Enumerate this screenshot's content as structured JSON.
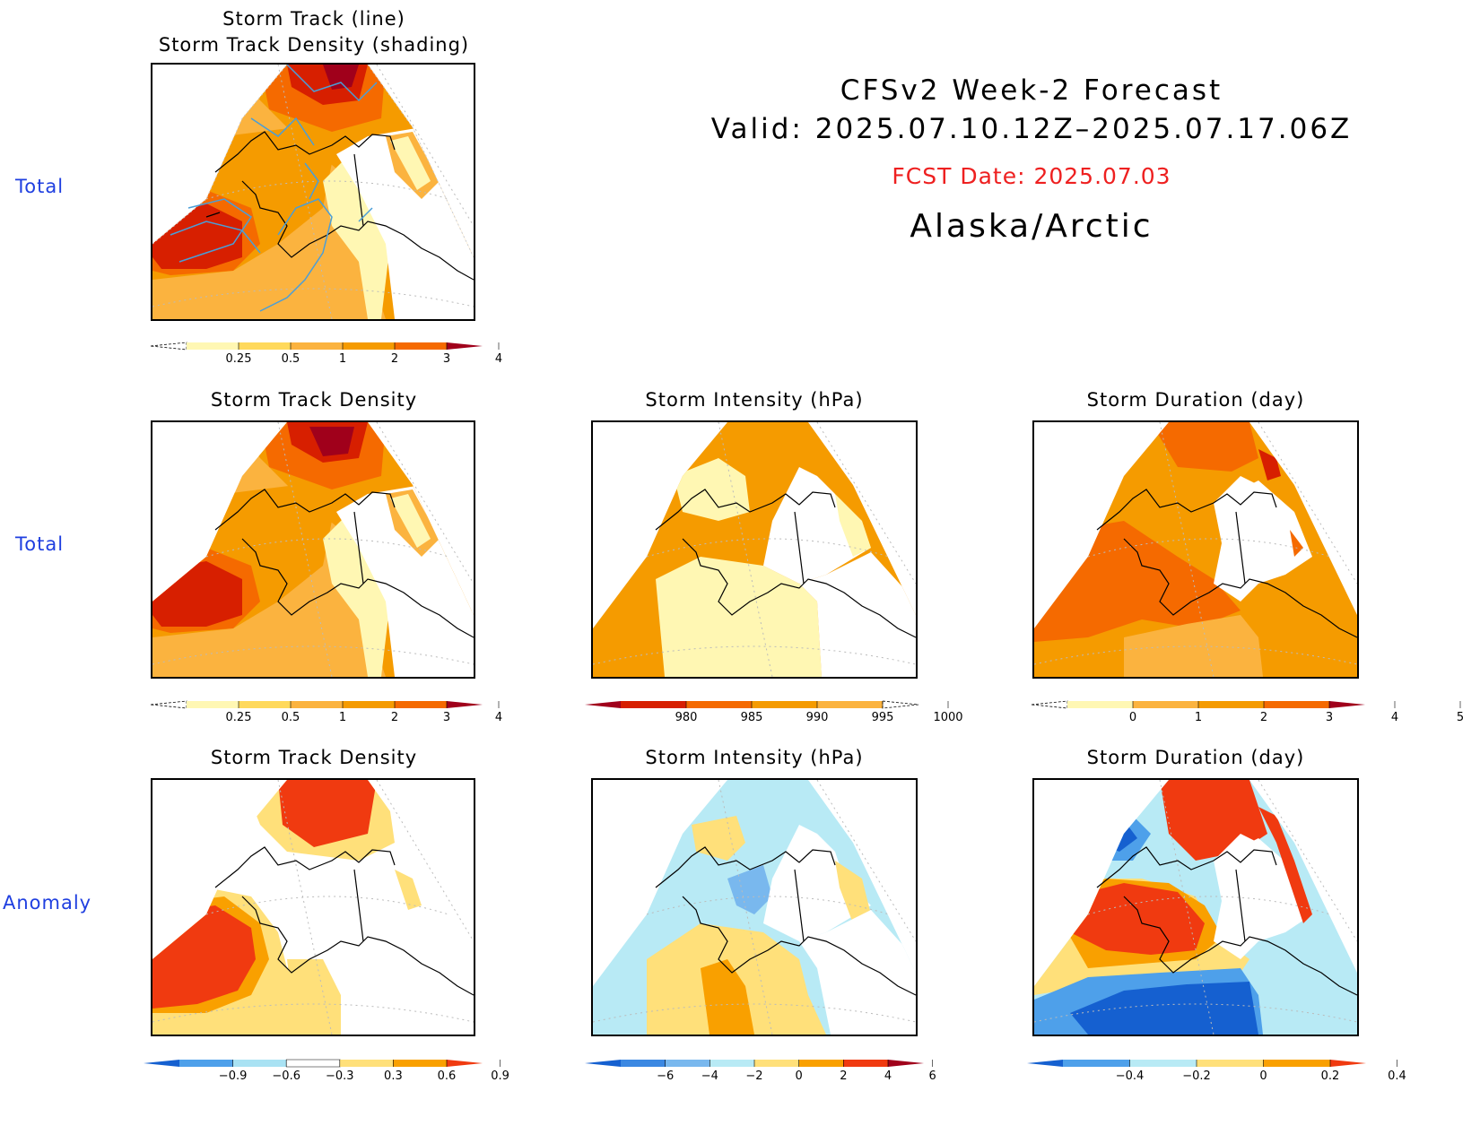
{
  "header": {
    "line1": "CFSv2 Week-2 Forecast",
    "line2": "Valid: 2025.07.10.12Z–2025.07.17.06Z",
    "fcst": "FCST Date: 2025.07.03",
    "region": "Alaska/Arctic"
  },
  "rows": {
    "r1": "Total",
    "r2": "Total",
    "r3": "Anomaly"
  },
  "panels": {
    "top": {
      "title1": "Storm Track (line)",
      "title2": "Storm Track Density (shading)"
    },
    "density_total": {
      "title": "Storm Track Density"
    },
    "intensity_total": {
      "title": "Storm Intensity (hPa)"
    },
    "duration_total": {
      "title": "Storm Duration (day)"
    },
    "density_anom": {
      "title": "Storm Track Density"
    },
    "intensity_anom": {
      "title": "Storm Intensity (hPa)"
    },
    "duration_anom": {
      "title": "Storm Duration (day)"
    }
  },
  "colorbars": {
    "density": {
      "labels": [
        "0.25",
        "0.5",
        "1",
        "2",
        "3",
        "4"
      ],
      "colors": [
        "#fff7b3",
        "#ffd95c",
        "#fbb33f",
        "#f59b00",
        "#f56a00",
        "#d71f00",
        "#a0001b"
      ]
    },
    "intensity": {
      "labels": [
        "980",
        "985",
        "990",
        "995",
        "1000"
      ],
      "colors": [
        "#a0001b",
        "#d71f00",
        "#f56a00",
        "#f59b00",
        "#fbb33f",
        "#fff7b3"
      ]
    },
    "duration": {
      "labels": [
        "0",
        "1",
        "2",
        "3",
        "4",
        "5"
      ],
      "colors": [
        "#fff7b3",
        "#fbb33f",
        "#f59b00",
        "#f56a00",
        "#d71f00",
        "#a0001b"
      ]
    },
    "density_anom": {
      "labels": [
        "−0.9",
        "−0.6",
        "−0.3",
        "0.3",
        "0.6",
        "0.9"
      ],
      "colors": [
        "#1560d0",
        "#4ea0ea",
        "#a9e2f3",
        "#ffffff",
        "#ffe07a",
        "#f9a000",
        "#f03a10"
      ]
    },
    "intensity_anom": {
      "labels": [
        "−6",
        "−4",
        "−2",
        "0",
        "2",
        "4",
        "6"
      ],
      "colors": [
        "#1560d0",
        "#3b88e2",
        "#79b8ee",
        "#b8eaf5",
        "#ffe07a",
        "#f9a000",
        "#f03a10",
        "#a0001b"
      ]
    },
    "duration_anom": {
      "labels": [
        "−0.4",
        "−0.2",
        "0",
        "0.2",
        "0.4"
      ],
      "colors": [
        "#1560d0",
        "#4ea0ea",
        "#b8eaf5",
        "#ffe07a",
        "#f9a000",
        "#f03a10"
      ]
    }
  }
}
